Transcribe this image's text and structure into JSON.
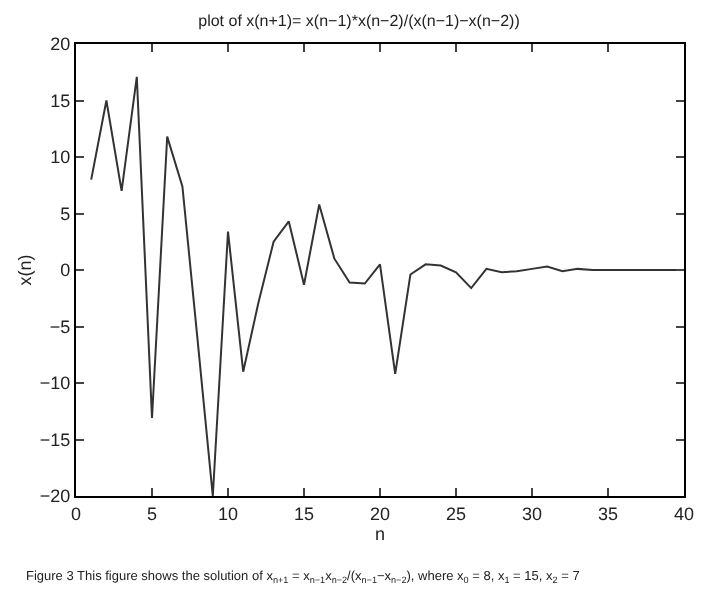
{
  "chart_data": {
    "type": "line",
    "title": "plot of x(n+1)= x(n−1)*x(n−2)/(x(n−1)−x(n−2))",
    "xlabel": "n",
    "ylabel": "x(n)",
    "x": [
      1,
      2,
      3,
      4,
      5,
      6,
      7,
      8,
      9,
      10,
      11,
      12,
      13,
      14,
      15,
      16,
      17,
      18,
      19,
      20,
      21,
      22,
      23,
      24,
      25,
      26,
      27,
      28,
      29,
      30,
      31,
      32,
      33,
      34,
      35,
      36,
      37,
      38,
      39,
      40
    ],
    "series": [
      {
        "color": "#333333",
        "values": [
          8,
          15,
          7,
          17.1,
          -13.1,
          11.8,
          7.4,
          -6.2,
          -20,
          3.4,
          -9,
          -2.9,
          2.5,
          4.3,
          -1.3,
          5.8,
          1,
          -1.1,
          -1.2,
          0.5,
          -9.2,
          -0.4,
          0.5,
          0.4,
          -0.2,
          -1.6,
          0.1,
          -0.2,
          -0.1,
          0.1,
          0.3,
          -0.1,
          0.1,
          0,
          0,
          0,
          0,
          0,
          0,
          0
        ]
      }
    ],
    "xlim": [
      0,
      40
    ],
    "xticks": [
      0,
      5,
      10,
      15,
      20,
      25,
      30,
      35,
      40
    ],
    "ylim": [
      -20,
      20
    ],
    "yticks": [
      -20,
      -15,
      -10,
      -5,
      0,
      5,
      10,
      15,
      20
    ],
    "legend": false,
    "marker": "none",
    "line_style": "solid",
    "annotations": [
      "Figure 3 This figure shows the solution of x$_{n+1}$ = x$_{n−1}$x$_{n−2}$/(x$_{n−1}$−x$_{n−2}$), where x$_{0}$ = 8, x$_{1}$ = 15, x$_{2}$ = 7"
    ]
  }
}
